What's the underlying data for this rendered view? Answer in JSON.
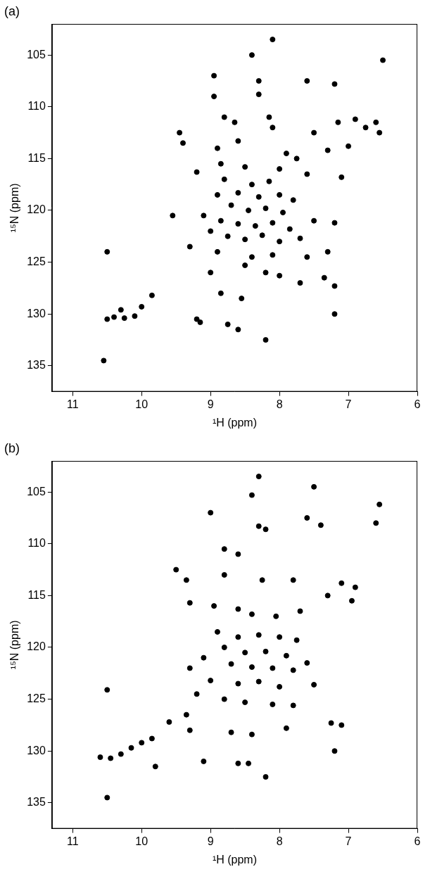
{
  "chart_data": [
    {
      "type": "scatter",
      "title": "(a)",
      "x_label": "¹H (ppm)",
      "y_label": "¹⁵N (ppm)",
      "xlim": [
        11.3,
        6
      ],
      "xticks": [
        6,
        7,
        8,
        9,
        10,
        11
      ],
      "ylim": [
        137.5,
        102
      ],
      "yticks": [
        105,
        110,
        115,
        120,
        125,
        130,
        135
      ],
      "grid": false,
      "color": "#000000",
      "marker": "circle",
      "x": [
        8.4,
        8.1,
        7.6,
        8.3,
        8.95,
        8.95,
        8.3,
        7.2,
        6.5,
        8.8,
        8.65,
        8.15,
        8.1,
        7.5,
        7.15,
        6.9,
        6.75,
        6.6,
        6.55,
        7.0,
        7.3,
        9.45,
        9.4,
        8.6,
        8.9,
        7.9,
        7.75,
        8.85,
        8.5,
        8.0,
        8.8,
        8.4,
        8.15,
        7.6,
        7.1,
        9.2,
        8.9,
        8.6,
        8.3,
        8.0,
        7.8,
        8.7,
        8.45,
        8.2,
        7.95,
        9.55,
        9.1,
        8.85,
        8.6,
        8.35,
        8.1,
        7.85,
        7.5,
        7.2,
        9.0,
        8.75,
        8.5,
        8.25,
        8.0,
        7.7,
        9.3,
        8.9,
        8.4,
        8.1,
        7.6,
        7.3,
        8.5,
        8.2,
        8.0,
        7.35,
        7.7,
        7.2,
        8.85,
        8.55,
        9.0,
        10.5,
        10.4,
        10.25,
        10.1,
        10.3,
        10.0,
        9.85,
        9.2,
        9.15,
        8.75,
        8.2,
        7.2,
        10.55,
        10.5,
        8.6
      ],
      "values": [
        105,
        103.5,
        107.5,
        107.5,
        107,
        109,
        108.8,
        107.8,
        105.5,
        111,
        111.5,
        111,
        112,
        112.5,
        111.5,
        111.2,
        112,
        111.5,
        112.5,
        113.8,
        114.2,
        112.5,
        113.5,
        113.3,
        114,
        114.5,
        115,
        115.5,
        115.8,
        116,
        117,
        117.5,
        117.2,
        116.5,
        116.8,
        116.3,
        118.5,
        118.3,
        118.7,
        118.5,
        119,
        119.5,
        120,
        119.8,
        120.2,
        120.5,
        120.5,
        121,
        121.3,
        121.5,
        121.2,
        121.8,
        121,
        121.2,
        122,
        122.5,
        122.8,
        122.4,
        123,
        122.7,
        123.5,
        124,
        124.5,
        124.3,
        124.5,
        124,
        125.3,
        126,
        126.3,
        126.5,
        127,
        127.3,
        128,
        128.5,
        126,
        130.5,
        130.3,
        130.4,
        130.2,
        129.6,
        129.3,
        128.2,
        130.5,
        130.8,
        131,
        132.5,
        130,
        134.5,
        124,
        131.5
      ]
    },
    {
      "type": "scatter",
      "title": "(b)",
      "x_label": "¹H (ppm)",
      "y_label": "¹⁵N (ppm)",
      "xlim": [
        11.3,
        6
      ],
      "xticks": [
        6,
        7,
        8,
        9,
        10,
        11
      ],
      "ylim": [
        137.5,
        102
      ],
      "yticks": [
        105,
        110,
        115,
        120,
        125,
        130,
        135
      ],
      "grid": false,
      "color": "#000000",
      "marker": "circle",
      "x": [
        8.3,
        8.4,
        7.5,
        9.0,
        8.3,
        8.2,
        7.6,
        7.4,
        6.55,
        6.6,
        8.8,
        8.6,
        9.5,
        9.35,
        8.8,
        8.25,
        7.8,
        7.1,
        6.9,
        7.3,
        6.95,
        9.3,
        8.95,
        8.6,
        8.4,
        8.05,
        7.7,
        8.9,
        8.6,
        8.3,
        8.0,
        7.75,
        8.8,
        8.5,
        8.2,
        7.9,
        9.1,
        8.7,
        8.4,
        8.1,
        7.8,
        7.6,
        9.3,
        9.0,
        8.6,
        8.3,
        8.0,
        7.5,
        9.2,
        8.8,
        8.5,
        8.1,
        7.8,
        9.35,
        9.3,
        9.6,
        8.7,
        8.4,
        7.25,
        7.1,
        7.9,
        10.6,
        10.45,
        10.3,
        10.15,
        10.0,
        9.85,
        9.8,
        9.1,
        8.6,
        8.45,
        8.2,
        7.2,
        10.5,
        10.5
      ],
      "values": [
        103.5,
        105.3,
        104.5,
        107,
        108.3,
        108.6,
        107.5,
        108.2,
        106.2,
        108,
        110.5,
        111,
        112.5,
        113.5,
        113,
        113.5,
        113.5,
        113.8,
        114.2,
        115,
        115.5,
        115.7,
        116,
        116.3,
        116.8,
        117,
        116.5,
        118.5,
        119,
        118.8,
        119,
        119.3,
        120,
        120.5,
        120.4,
        120.8,
        121,
        121.6,
        121.9,
        122,
        122.2,
        121.5,
        122,
        123.2,
        123.5,
        123.3,
        123.8,
        123.6,
        124.5,
        125,
        125.3,
        125.5,
        125.6,
        126.5,
        128,
        127.2,
        128.2,
        128.4,
        127.3,
        127.5,
        127.8,
        130.6,
        130.7,
        130.3,
        129.7,
        129.2,
        128.8,
        131.5,
        131,
        131.2,
        131.2,
        132.5,
        130,
        124.1,
        134.5
      ]
    }
  ]
}
